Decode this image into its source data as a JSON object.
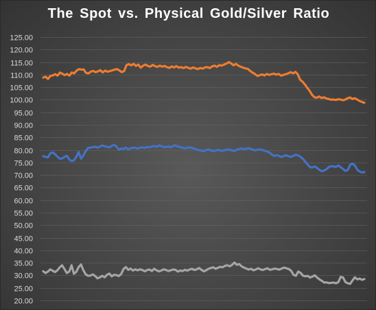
{
  "chart_data": {
    "type": "line",
    "title": "The Spot vs. Physical Gold/Silver Ratio",
    "xlabel": "",
    "ylabel": "",
    "ylim": [
      20,
      125
    ],
    "ytick_step": 5,
    "grid": true,
    "legend": "none",
    "series": [
      {
        "color": "#ed7d31",
        "values": [
          108.8,
          109.2,
          108.3,
          109.5,
          109.7,
          110.2,
          109.6,
          110.8,
          110.4,
          109.8,
          110.3,
          109.6,
          110.9,
          110.5,
          111.6,
          112.2,
          112.0,
          112.1,
          110.7,
          110.5,
          111.2,
          111.5,
          111.0,
          111.3,
          111.8,
          110.9,
          111.6,
          111.2,
          111.4,
          111.7,
          112.0,
          112.2,
          111.7,
          111.0,
          111.4,
          113.8,
          114.2,
          113.7,
          114.3,
          113.5,
          114.0,
          112.8,
          113.6,
          114.0,
          113.5,
          113.2,
          113.9,
          113.4,
          113.1,
          113.6,
          113.2,
          113.5,
          113.0,
          112.7,
          113.3,
          112.9,
          113.4,
          112.8,
          113.0,
          112.6,
          113.1,
          112.7,
          112.4,
          112.9,
          112.5,
          112.2,
          112.7,
          112.4,
          112.9,
          113.0,
          112.6,
          113.3,
          113.6,
          113.1,
          113.8,
          113.6,
          114.0,
          114.4,
          115.0,
          114.5,
          113.7,
          114.3,
          113.6,
          113.2,
          112.8,
          112.5,
          112.3,
          111.5,
          110.8,
          110.3,
          109.5,
          109.8,
          110.1,
          109.7,
          110.3,
          109.9,
          110.2,
          110.4,
          110.0,
          110.3,
          109.6,
          109.9,
          110.2,
          110.5,
          111.0,
          110.5,
          111.1,
          110.2,
          108.0,
          107.2,
          106.1,
          104.8,
          103.5,
          102.0,
          101.0,
          100.8,
          101.3,
          100.7,
          101.0,
          100.5,
          100.3,
          100.0,
          100.1,
          99.9,
          100.2,
          100.1,
          99.8,
          100.1,
          100.6,
          100.9,
          100.3,
          100.6,
          100.1,
          99.5,
          99.1,
          98.8
        ]
      },
      {
        "color": "#4472c4",
        "values": [
          77.5,
          77.2,
          77.0,
          78.6,
          79.0,
          78.3,
          77.3,
          76.5,
          76.6,
          77.2,
          77.7,
          76.2,
          75.6,
          75.8,
          77.2,
          79.2,
          76.5,
          77.8,
          79.5,
          80.8,
          80.9,
          81.1,
          81.3,
          80.9,
          81.3,
          81.8,
          81.5,
          81.2,
          81.0,
          81.6,
          82.0,
          81.4,
          80.1,
          80.5,
          80.4,
          80.9,
          80.2,
          80.6,
          80.9,
          80.8,
          80.5,
          80.9,
          81.0,
          80.8,
          81.2,
          81.0,
          81.3,
          81.6,
          81.2,
          81.8,
          81.5,
          81.2,
          81.1,
          81.4,
          81.0,
          81.6,
          81.8,
          81.4,
          81.1,
          80.9,
          80.6,
          80.9,
          81.0,
          80.8,
          80.5,
          80.1,
          79.9,
          79.7,
          79.5,
          79.9,
          80.2,
          79.8,
          79.5,
          79.7,
          80.0,
          79.8,
          79.6,
          79.9,
          80.2,
          80.0,
          79.8,
          79.5,
          80.1,
          80.4,
          80.6,
          80.2,
          80.5,
          80.7,
          80.4,
          80.0,
          79.8,
          80.2,
          80.1,
          79.9,
          79.6,
          79.3,
          78.8,
          78.0,
          77.6,
          77.9,
          77.5,
          77.2,
          77.6,
          77.9,
          77.4,
          77.2,
          77.7,
          78.1,
          77.8,
          77.2,
          76.4,
          75.3,
          74.2,
          73.1,
          73.0,
          73.4,
          72.8,
          72.0,
          71.5,
          71.8,
          72.3,
          73.2,
          73.5,
          73.4,
          73.2,
          73.8,
          73.1,
          72.4,
          71.6,
          72.0,
          74.1,
          74.5,
          73.8,
          72.1,
          71.4,
          71.0,
          71.2
        ]
      },
      {
        "color": "#a5a5a5",
        "values": [
          31.6,
          30.9,
          31.5,
          32.4,
          31.8,
          31.3,
          32.0,
          33.2,
          34.0,
          32.5,
          30.9,
          31.5,
          34.0,
          30.6,
          31.4,
          33.3,
          34.3,
          32.0,
          30.4,
          29.8,
          29.9,
          30.4,
          29.7,
          28.8,
          29.2,
          29.8,
          29.2,
          30.2,
          30.7,
          29.6,
          30.2,
          30.1,
          29.7,
          30.5,
          32.5,
          33.3,
          32.2,
          32.7,
          31.9,
          32.4,
          32.0,
          32.4,
          32.1,
          31.6,
          32.1,
          32.3,
          31.7,
          32.6,
          32.0,
          31.6,
          31.9,
          32.4,
          32.1,
          31.7,
          32.0,
          32.3,
          32.2,
          31.5,
          31.9,
          31.7,
          32.2,
          31.9,
          32.3,
          32.6,
          32.1,
          32.4,
          32.9,
          32.2,
          31.6,
          32.0,
          32.6,
          32.9,
          33.2,
          32.6,
          33.0,
          33.4,
          33.2,
          33.8,
          34.0,
          33.6,
          34.2,
          35.1,
          34.2,
          34.5,
          33.6,
          33.1,
          32.7,
          32.3,
          32.6,
          32.0,
          32.3,
          32.8,
          32.4,
          32.1,
          32.5,
          32.8,
          32.2,
          32.4,
          32.7,
          32.5,
          32.3,
          32.7,
          33.1,
          32.8,
          32.5,
          31.8,
          30.2,
          29.8,
          31.5,
          31.0,
          29.9,
          29.6,
          29.8,
          29.1,
          29.5,
          30.0,
          29.1,
          28.4,
          27.8,
          27.1,
          27.2,
          26.9,
          27.0,
          27.1,
          26.8,
          27.3,
          29.4,
          29.1,
          27.3,
          26.8,
          26.6,
          28.0,
          29.2,
          28.4,
          28.7,
          28.2,
          28.5
        ]
      }
    ]
  }
}
